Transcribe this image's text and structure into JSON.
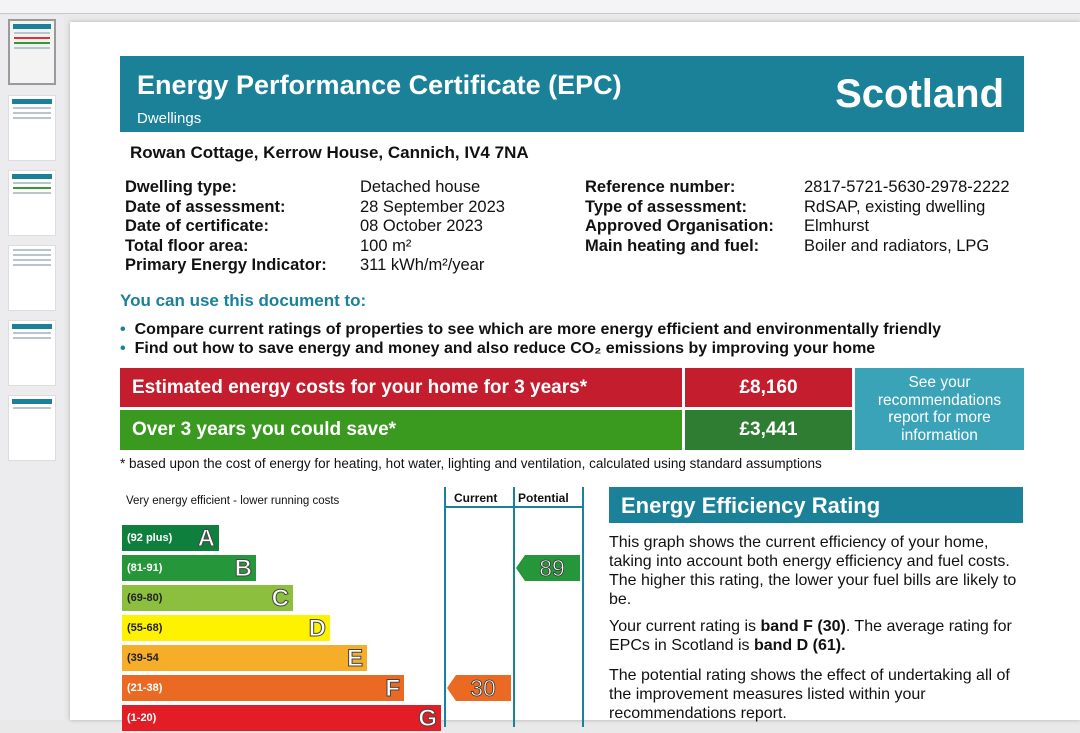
{
  "header": {
    "title": "Energy Performance Certificate (EPC)",
    "subtitle": "Dwellings",
    "region": "Scotland"
  },
  "address": "Rowan Cottage, Kerrow House, Cannich, IV4 7NA",
  "details_left": [
    {
      "k": "Dwelling type:",
      "v": "Detached house"
    },
    {
      "k": "Date of assessment:",
      "v": "28 September 2023"
    },
    {
      "k": "Date of certificate:",
      "v": "08 October 2023"
    },
    {
      "k": "Total floor area:",
      "v": "100 m²"
    },
    {
      "k": "Primary Energy Indicator:",
      "v": "311 kWh/m²/year"
    }
  ],
  "details_right": [
    {
      "k": "Reference number:",
      "v": "2817-5721-5630-2978-2222"
    },
    {
      "k": "Type of assessment:",
      "v": "RdSAP, existing dwelling"
    },
    {
      "k": "Approved Organisation:",
      "v": "Elmhurst"
    },
    {
      "k": "Main heating and fuel:",
      "v": "Boiler and radiators, LPG"
    }
  ],
  "use_title": "You can use this document to:",
  "bullets": [
    "Compare current ratings of properties to see which are more energy efficient and environmentally friendly",
    "Find out how to save energy and money and also reduce CO₂ emissions by improving your home"
  ],
  "costs": {
    "estimated_label": "Estimated energy costs for your home for 3 years*",
    "estimated_value": "£8,160",
    "save_label": "Over 3 years you could save*",
    "save_value": "£3,441",
    "recommend": "See your recommendations report for more information"
  },
  "footnote": "* based upon the cost of energy for heating, hot water, lighting and ventilation, calculated using standard assumptions",
  "rating_chart": {
    "top_label": "Very energy efficient - lower running costs",
    "current_header": "Current",
    "potential_header": "Potential",
    "bands": [
      {
        "letter": "A",
        "range": "(92 plus)",
        "color": "#0f7f3e"
      },
      {
        "letter": "B",
        "range": "(81-91)",
        "color": "#26963b"
      },
      {
        "letter": "C",
        "range": "(69-80)",
        "color": "#8dbf3f"
      },
      {
        "letter": "D",
        "range": "(55-68)",
        "color": "#fff200"
      },
      {
        "letter": "E",
        "range": "(39-54",
        "color": "#f6ad2a"
      },
      {
        "letter": "F",
        "range": "(21-38)",
        "color": "#ea6a24"
      },
      {
        "letter": "G",
        "range": "(1-20)",
        "color": "#e31d25"
      }
    ],
    "current": "30",
    "current_band": "F",
    "potential": "89",
    "potential_band": "B"
  },
  "eer": {
    "title": "Energy Efficiency Rating",
    "p1": "This graph shows the current efficiency of your home, taking into account both energy efficiency and fuel costs. The higher this rating, the lower your fuel bills are likely to be.",
    "p2_a": "Your current rating is ",
    "p2_b": "band F (30)",
    "p2_c": ". The average rating for EPCs in Scotland is ",
    "p2_d": "band D (61).",
    "p3": "The potential rating shows the effect of undertaking all of the improvement measures listed within your recommendations report."
  },
  "colors": {
    "teal": "#1a8199",
    "red": "#c41e2e",
    "green": "#3a9a1f",
    "dark_green": "#2e7d32",
    "light_teal": "#3aa3b8"
  }
}
